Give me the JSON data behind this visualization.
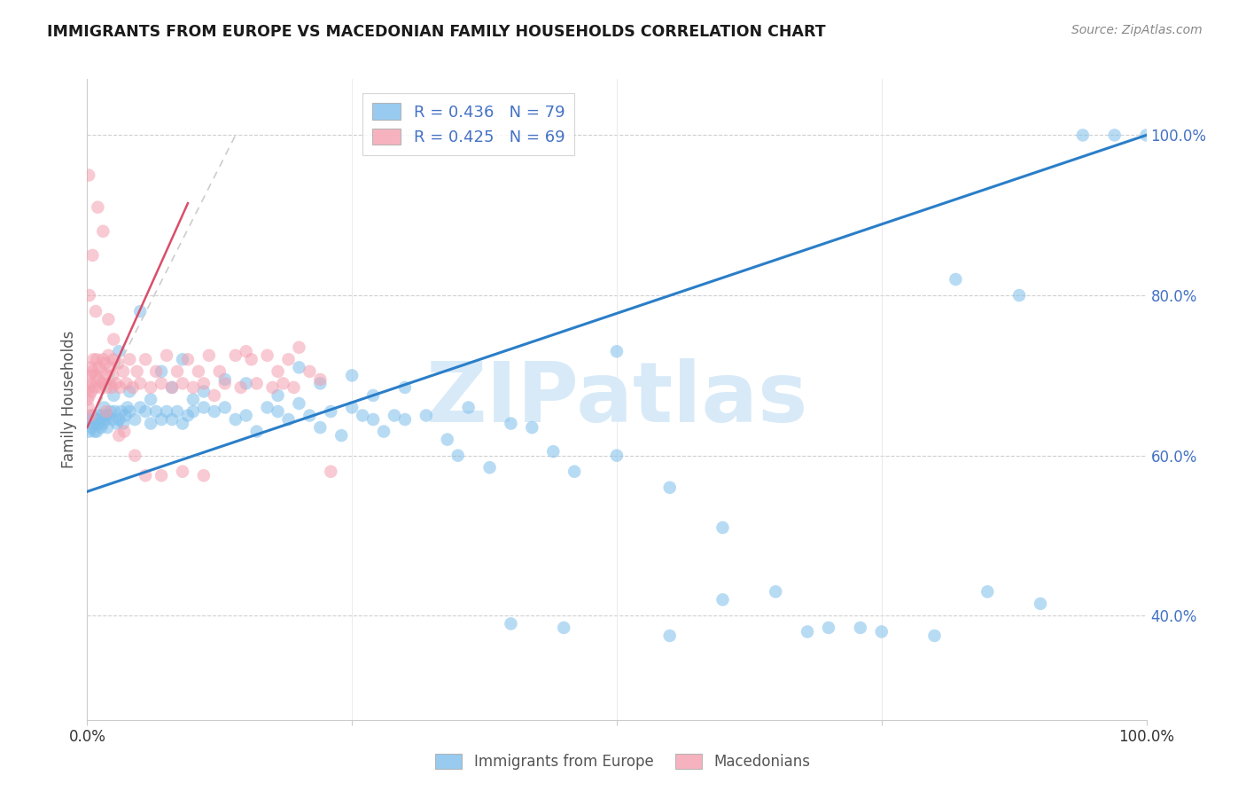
{
  "title": "IMMIGRANTS FROM EUROPE VS MACEDONIAN FAMILY HOUSEHOLDS CORRELATION CHART",
  "source": "Source: ZipAtlas.com",
  "ylabel": "Family Households",
  "right_ytick_vals": [
    40,
    60,
    80,
    100
  ],
  "right_ytick_labels": [
    "40.0%",
    "60.0%",
    "80.0%",
    "100.0%"
  ],
  "legend_blue_r": "R = 0.436",
  "legend_blue_n": "N = 79",
  "legend_pink_r": "R = 0.425",
  "legend_pink_n": "N = 69",
  "blue_color": "#7fbfeb",
  "pink_color": "#f4a0b0",
  "blue_line_color": "#2a7ec8",
  "pink_line_color": "#d94f6a",
  "pink_line_dash_color": "#cccccc",
  "watermark_text": "ZIPatlas",
  "watermark_color": "#d8eaf8",
  "ytick_color": "#4472c4",
  "bottom_legend_color": "#555555",
  "grid_color": "#d0d0d0",
  "spine_color": "#cccccc",
  "title_color": "#1a1a1a",
  "source_color": "#888888",
  "blue_scatter_x": [
    0.2,
    0.3,
    0.4,
    0.5,
    0.6,
    0.7,
    0.8,
    0.9,
    1.0,
    1.1,
    1.2,
    1.3,
    1.4,
    1.5,
    1.6,
    1.7,
    1.8,
    1.9,
    2.0,
    2.2,
    2.4,
    2.6,
    2.8,
    3.0,
    3.2,
    3.4,
    3.6,
    3.8,
    4.0,
    4.5,
    5.0,
    5.5,
    6.0,
    6.5,
    7.0,
    7.5,
    8.0,
    8.5,
    9.0,
    9.5,
    10.0,
    11.0,
    12.0,
    13.0,
    14.0,
    15.0,
    16.0,
    17.0,
    18.0,
    19.0,
    20.0,
    21.0,
    22.0,
    23.0,
    24.0,
    25.0,
    26.0,
    27.0,
    28.0,
    29.0,
    30.0,
    32.0,
    34.0,
    36.0,
    38.0,
    40.0,
    42.0,
    44.0,
    46.0,
    50.0,
    55.0,
    60.0,
    65.0,
    70.0,
    75.0,
    80.0,
    85.0,
    90.0,
    100.0
  ],
  "blue_scatter_y": [
    63.0,
    64.5,
    63.5,
    65.0,
    64.0,
    63.0,
    64.5,
    63.0,
    64.0,
    65.0,
    64.5,
    63.5,
    65.0,
    64.0,
    66.0,
    64.5,
    65.0,
    63.5,
    65.0,
    65.5,
    64.5,
    65.5,
    64.0,
    64.5,
    65.5,
    64.0,
    65.0,
    66.0,
    65.5,
    64.5,
    66.0,
    65.5,
    64.0,
    65.5,
    64.5,
    65.5,
    64.5,
    65.5,
    64.0,
    65.0,
    65.5,
    66.0,
    65.5,
    66.0,
    64.5,
    65.0,
    63.0,
    66.0,
    65.5,
    64.5,
    66.5,
    65.0,
    63.5,
    65.5,
    62.5,
    66.0,
    65.0,
    64.5,
    63.0,
    65.0,
    64.5,
    65.0,
    62.0,
    66.0,
    58.5,
    64.0,
    63.5,
    60.5,
    58.0,
    60.0,
    56.0,
    51.0,
    43.0,
    38.5,
    38.0,
    37.5,
    43.0,
    41.5,
    100.0
  ],
  "blue_scatter_x2": [
    3.0,
    5.0,
    7.0,
    9.0,
    11.0,
    13.0,
    20.0,
    25.0,
    30.0,
    50.0,
    2.5,
    4.0,
    6.0,
    8.0,
    10.0,
    15.0,
    18.0,
    22.0,
    27.0,
    35.0,
    40.0,
    45.0,
    55.0,
    60.0,
    68.0,
    73.0,
    82.0,
    88.0,
    94.0,
    97.0
  ],
  "blue_scatter_y2": [
    73.0,
    78.0,
    70.5,
    72.0,
    68.0,
    69.5,
    71.0,
    70.0,
    68.5,
    73.0,
    67.5,
    68.0,
    67.0,
    68.5,
    67.0,
    69.0,
    67.5,
    69.0,
    67.5,
    60.0,
    39.0,
    38.5,
    37.5,
    42.0,
    38.0,
    38.5,
    82.0,
    80.0,
    100.0,
    100.0
  ],
  "pink_scatter_x": [
    0.05,
    0.1,
    0.15,
    0.2,
    0.25,
    0.3,
    0.35,
    0.4,
    0.5,
    0.6,
    0.7,
    0.8,
    0.9,
    1.0,
    1.1,
    1.2,
    1.3,
    1.4,
    1.5,
    1.6,
    1.7,
    1.8,
    1.9,
    2.0,
    2.1,
    2.2,
    2.3,
    2.4,
    2.5,
    2.7,
    2.9,
    3.1,
    3.4,
    3.7,
    4.0,
    4.3,
    4.7,
    5.0,
    5.5,
    6.0,
    6.5,
    7.0,
    7.5,
    8.0,
    8.5,
    9.0,
    9.5,
    10.0,
    10.5,
    11.0,
    11.5,
    12.0,
    12.5,
    13.0,
    14.0,
    14.5,
    15.0,
    15.5,
    16.0,
    17.0,
    17.5,
    18.0,
    18.5,
    19.0,
    19.5,
    20.0,
    21.0,
    22.0,
    23.0
  ],
  "pink_scatter_y": [
    67.0,
    66.0,
    68.5,
    67.5,
    70.0,
    69.0,
    71.0,
    68.0,
    70.5,
    72.0,
    68.5,
    70.0,
    72.0,
    69.5,
    71.0,
    68.5,
    70.5,
    69.0,
    72.0,
    69.0,
    71.5,
    68.5,
    70.0,
    72.5,
    69.0,
    71.0,
    68.5,
    70.0,
    72.0,
    69.0,
    71.5,
    68.5,
    70.5,
    69.0,
    72.0,
    68.5,
    70.5,
    69.0,
    72.0,
    68.5,
    70.5,
    69.0,
    72.5,
    68.5,
    70.5,
    69.0,
    72.0,
    68.5,
    70.5,
    69.0,
    72.5,
    67.5,
    70.5,
    69.0,
    72.5,
    68.5,
    73.0,
    72.0,
    69.0,
    72.5,
    68.5,
    70.5,
    69.0,
    72.0,
    68.5,
    73.5,
    70.5,
    69.5,
    58.0
  ],
  "pink_scatter_x2": [
    0.2,
    0.5,
    1.0,
    1.5,
    2.0,
    2.5,
    3.0,
    3.5,
    4.5,
    5.5,
    7.0,
    9.0,
    11.0,
    0.3,
    0.8,
    0.15,
    1.8
  ],
  "pink_scatter_y2": [
    80.0,
    85.0,
    91.0,
    88.0,
    77.0,
    74.5,
    62.5,
    63.0,
    60.0,
    57.5,
    57.5,
    58.0,
    57.5,
    65.0,
    78.0,
    95.0,
    65.5
  ],
  "blue_line_x": [
    0,
    100
  ],
  "blue_line_y": [
    55.5,
    100.0
  ],
  "pink_line_x": [
    0,
    9.5
  ],
  "pink_line_y": [
    63.5,
    91.5
  ],
  "pink_dash_line_x": [
    0,
    9.5
  ],
  "pink_dash_line_y": [
    63.5,
    91.5
  ],
  "xlim": [
    0,
    100
  ],
  "ylim": [
    27,
    107
  ],
  "xtick_positions": [
    0,
    25,
    50,
    75,
    100
  ],
  "xtick_labels": [
    "0.0%",
    "",
    "",
    "",
    "100.0%"
  ]
}
